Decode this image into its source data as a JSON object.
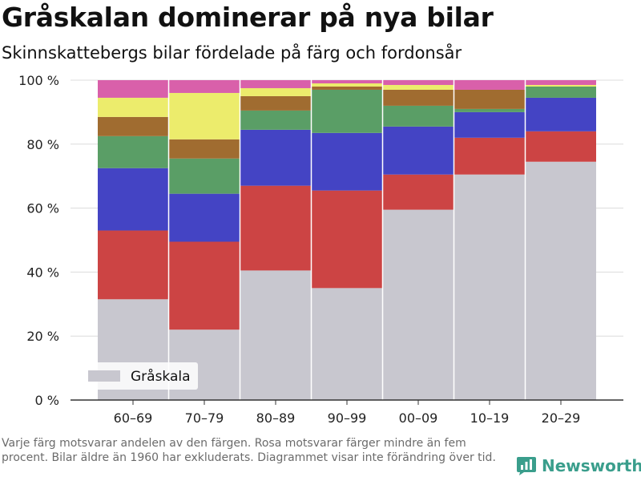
{
  "title": "Gråskalan dominerar på nya bilar",
  "subtitle": "Skinnskattebergs bilar fördelade på färg och fordonsår",
  "footnote": "Varje färg motsvarar andelen av den färgen. Rosa motsvarar färger mindre än fem procent. Bilar äldre än 1960 har exkluderats. Diagrammet visar inte förändring över tid.",
  "brand": "Newsworthy",
  "colors": {
    "grayscale": "#c8c7cf",
    "red": "#cc4444",
    "blue": "#4444c4",
    "green": "#5a9e66",
    "brown": "#a06c30",
    "yellow": "#ecec6c",
    "pink": "#d960aa",
    "brand": "#3a9e8c"
  },
  "chart_data": {
    "type": "bar",
    "stacked": true,
    "categories": [
      "60–69",
      "70–79",
      "80–89",
      "90–99",
      "00–09",
      "10–19",
      "20–29"
    ],
    "series": [
      {
        "name": "Gråskala",
        "color_key": "grayscale",
        "values": [
          31.5,
          22,
          40.5,
          35,
          59.5,
          70.5,
          74.5
        ]
      },
      {
        "color_key": "red",
        "values": [
          21.5,
          27.5,
          26.5,
          30.5,
          11,
          11.5,
          9.5
        ]
      },
      {
        "color_key": "blue",
        "values": [
          19.5,
          15,
          17.5,
          18,
          15,
          8,
          10.5
        ]
      },
      {
        "color_key": "green",
        "values": [
          10,
          11,
          6,
          13.5,
          6.5,
          1,
          3.5
        ]
      },
      {
        "color_key": "brown",
        "values": [
          6,
          6,
          4.5,
          1,
          5,
          6,
          0
        ]
      },
      {
        "color_key": "yellow",
        "values": [
          6,
          14.5,
          2.5,
          1,
          1.5,
          0,
          0.5
        ]
      },
      {
        "color_key": "pink",
        "values": [
          5.5,
          4,
          2.5,
          1,
          1.5,
          3,
          1.5
        ]
      }
    ],
    "ylim": [
      0,
      100
    ],
    "yticks": [
      0,
      20,
      40,
      60,
      80,
      100
    ],
    "ytick_labels": [
      "0 %",
      "20 %",
      "40 %",
      "60 %",
      "80 %",
      "100 %"
    ],
    "grid": true,
    "legend": {
      "position": "bottom-left",
      "entries": [
        "Gråskala"
      ]
    }
  }
}
